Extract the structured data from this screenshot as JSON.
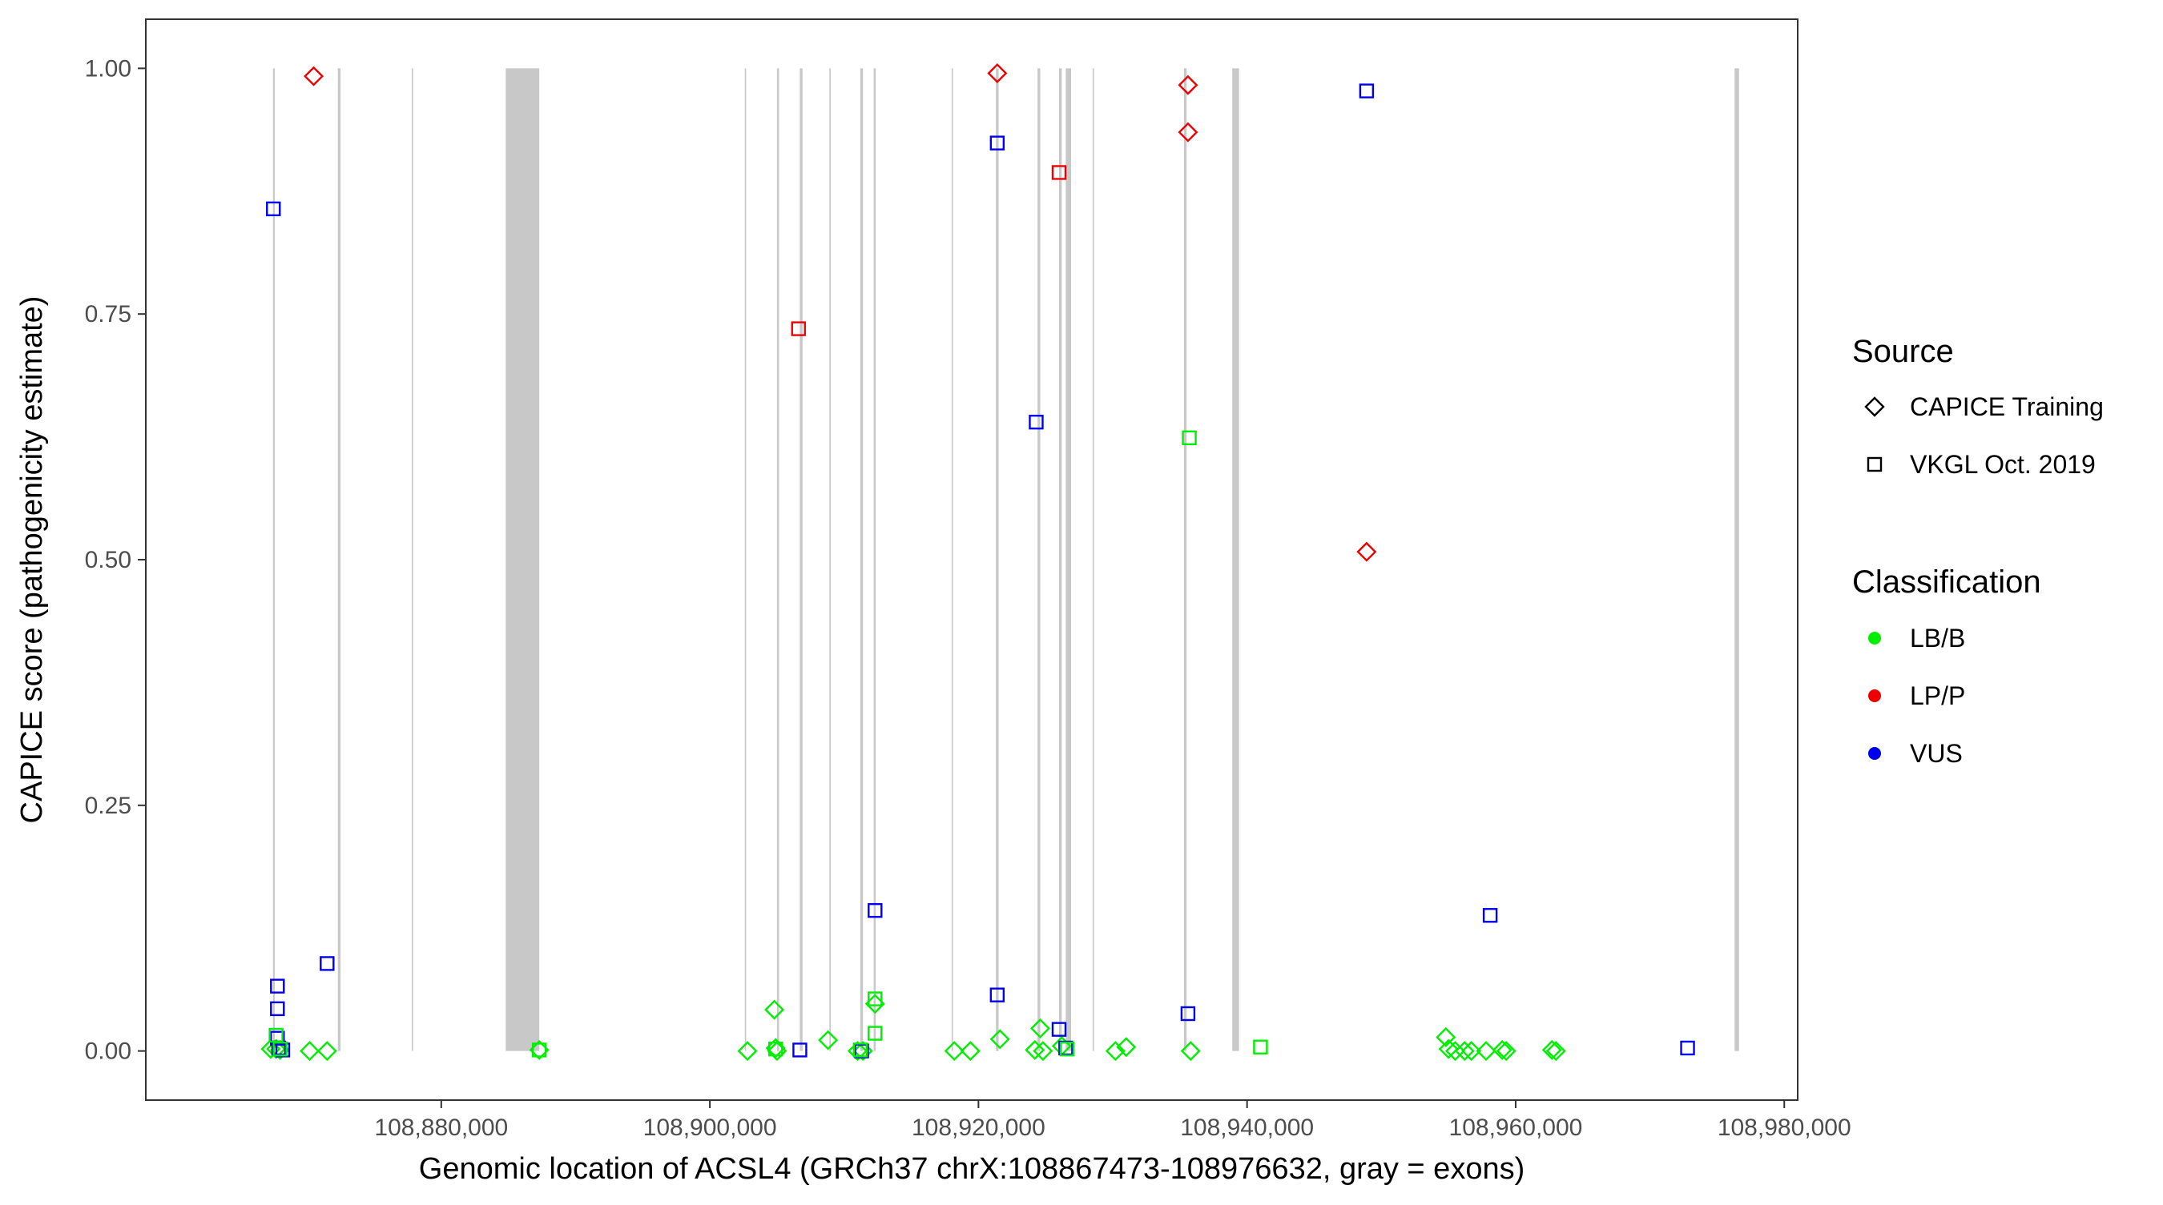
{
  "chart_data": {
    "type": "scatter",
    "xlabel": "Genomic location of ACSL4 (GRCh37 chrX:108867473-108976632, gray = exons)",
    "ylabel": "CAPICE score (pathogenicity estimate)",
    "xlim": [
      108858000,
      108981000
    ],
    "ylim": [
      -0.05,
      1.05
    ],
    "x_ticks": [
      108880000,
      108900000,
      108920000,
      108940000,
      108960000,
      108980000
    ],
    "x_tick_labels": [
      "108,880,000",
      "108,900,000",
      "108,920,000",
      "108,940,000",
      "108,960,000",
      "108,980,000"
    ],
    "y_ticks": [
      0,
      0.25,
      0.5,
      0.75,
      1.0
    ],
    "y_tick_labels": [
      "0.00",
      "0.25",
      "0.50",
      "0.75",
      "1.00"
    ],
    "grid": false,
    "exons": [
      [
        108867473,
        108867600
      ],
      [
        108872300,
        108872500
      ],
      [
        108877800,
        108877900
      ],
      [
        108884800,
        108887300
      ],
      [
        108902600,
        108902700
      ],
      [
        108905000,
        108905150
      ],
      [
        108906700,
        108906900
      ],
      [
        108908900,
        108909000
      ],
      [
        108911200,
        108911400
      ],
      [
        108912200,
        108912350
      ],
      [
        108918000,
        108918100
      ],
      [
        108921300,
        108921500
      ],
      [
        108924400,
        108924600
      ],
      [
        108926000,
        108926200
      ],
      [
        108926500,
        108926900
      ],
      [
        108928500,
        108928600
      ],
      [
        108935300,
        108935500
      ],
      [
        108938900,
        108939400
      ],
      [
        108976300,
        108976632
      ]
    ],
    "exon_color": "#c8c8c8",
    "legend": {
      "position": "right",
      "source_title": "Source",
      "source_entries": [
        {
          "name": "CAPICE Training",
          "shape": "diamond"
        },
        {
          "name": "VKGL Oct. 2019",
          "shape": "square"
        }
      ],
      "class_title": "Classification",
      "class_entries": [
        {
          "name": "LB/B",
          "color": "#00ee00"
        },
        {
          "name": "LP/P",
          "color": "#ee0000"
        },
        {
          "name": "VUS",
          "color": "#0000ee"
        }
      ]
    },
    "colors": {
      "LB/B": "#00ee00",
      "LP/P": "#ee0000",
      "VUS": "#0000ee"
    },
    "series": [
      {
        "source": "CAPICE Training",
        "shape": "diamond",
        "class": "LP/P",
        "points": [
          [
            108870500,
            0.992
          ],
          [
            108921400,
            0.995
          ],
          [
            108935600,
            0.983
          ],
          [
            108935600,
            0.935
          ],
          [
            108948900,
            0.508
          ]
        ]
      },
      {
        "source": "CAPICE Training",
        "shape": "diamond",
        "class": "LB/B",
        "points": [
          [
            108867300,
            0.002
          ],
          [
            108867700,
            0.002
          ],
          [
            108868000,
            0.001
          ],
          [
            108870200,
            0.0
          ],
          [
            108871500,
            0.0
          ],
          [
            108887300,
            0.001
          ],
          [
            108902800,
            0.0
          ],
          [
            108904800,
            0.042
          ],
          [
            108904900,
            0.003
          ],
          [
            108905000,
            0.0
          ],
          [
            108908800,
            0.011
          ],
          [
            108911000,
            0.0
          ],
          [
            108911400,
            0.0
          ],
          [
            108912300,
            0.048
          ],
          [
            108918200,
            0.0
          ],
          [
            108919400,
            0.0
          ],
          [
            108921600,
            0.012
          ],
          [
            108924200,
            0.001
          ],
          [
            108924600,
            0.023
          ],
          [
            108924800,
            0.0
          ],
          [
            108926200,
            0.005
          ],
          [
            108930200,
            0.0
          ],
          [
            108931000,
            0.004
          ],
          [
            108935800,
            0.0
          ],
          [
            108954800,
            0.014
          ],
          [
            108955000,
            0.002
          ],
          [
            108955500,
            0.0
          ],
          [
            108956200,
            0.0
          ],
          [
            108956700,
            0.0
          ],
          [
            108957800,
            0.0
          ],
          [
            108959000,
            0.001
          ],
          [
            108959300,
            0.0
          ],
          [
            108962700,
            0.001
          ],
          [
            108963000,
            0.0
          ]
        ]
      },
      {
        "source": "VKGL Oct. 2019",
        "shape": "square",
        "class": "VUS",
        "points": [
          [
            108867500,
            0.857
          ],
          [
            108867800,
            0.066
          ],
          [
            108867800,
            0.043
          ],
          [
            108867800,
            0.013
          ],
          [
            108867900,
            0.003
          ],
          [
            108868200,
            0.001
          ],
          [
            108871500,
            0.089
          ],
          [
            108906700,
            0.001
          ],
          [
            108911300,
            0.0
          ],
          [
            108912300,
            0.143
          ],
          [
            108921400,
            0.924
          ],
          [
            108921400,
            0.057
          ],
          [
            108924300,
            0.64
          ],
          [
            108926000,
            0.022
          ],
          [
            108926500,
            0.003
          ],
          [
            108935600,
            0.038
          ],
          [
            108948900,
            0.977
          ],
          [
            108958100,
            0.138
          ],
          [
            108972800,
            0.003
          ]
        ]
      },
      {
        "source": "VKGL Oct. 2019",
        "shape": "square",
        "class": "LP/P",
        "points": [
          [
            108906600,
            0.735
          ],
          [
            108926000,
            0.894
          ]
        ]
      },
      {
        "source": "VKGL Oct. 2019",
        "shape": "square",
        "class": "LB/B",
        "points": [
          [
            108867700,
            0.016
          ],
          [
            108868000,
            0.002
          ],
          [
            108887300,
            0.001
          ],
          [
            108904900,
            0.002
          ],
          [
            108911200,
            0.001
          ],
          [
            108912300,
            0.053
          ],
          [
            108912300,
            0.018
          ],
          [
            108926600,
            0.002
          ],
          [
            108935700,
            0.624
          ],
          [
            108941000,
            0.004
          ]
        ]
      }
    ]
  }
}
